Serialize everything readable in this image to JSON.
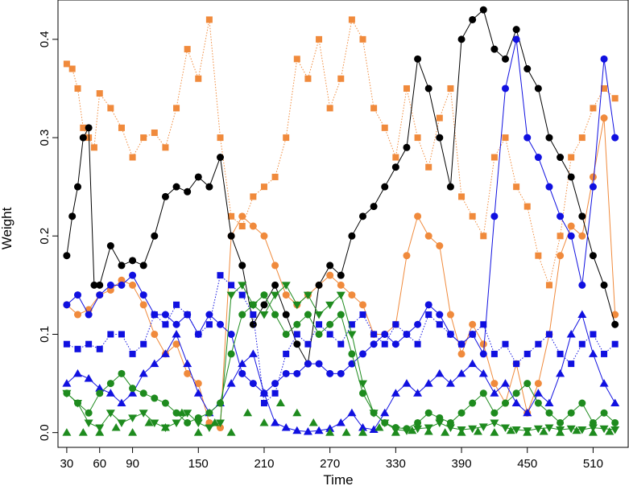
{
  "chart_data": {
    "type": "scatter",
    "xlabel": "Time",
    "ylabel": "Weight",
    "xlim": [
      22,
      542
    ],
    "ylim": [
      -0.015,
      0.44
    ],
    "xticks": [
      30,
      60,
      90,
      150,
      210,
      270,
      330,
      390,
      450,
      510
    ],
    "yticks": [
      0.0,
      0.1,
      0.2,
      0.3,
      0.4
    ],
    "ytick_labels": [
      "0.0",
      "0.1",
      "0.2",
      "0.3",
      "0.4"
    ],
    "colors": {
      "orange": "#F08A3C",
      "black": "#000000",
      "blue": "#1010E0",
      "green": "#1E8B1E"
    },
    "series": [
      {
        "color": "#F08A3C",
        "marker": "square",
        "line": "dotted",
        "x": [
          30,
          35,
          40,
          45,
          50,
          55,
          60,
          70,
          80,
          90,
          100,
          110,
          120,
          130,
          140,
          150,
          160,
          170,
          180,
          190,
          200,
          210,
          220,
          230,
          240,
          250,
          260,
          270,
          280,
          290,
          300,
          310,
          320,
          330,
          340,
          350,
          360,
          370,
          380,
          390,
          400,
          410,
          420,
          430,
          440,
          450,
          460,
          470,
          480,
          490,
          500,
          510,
          520,
          530
        ],
        "y": [
          0.375,
          0.37,
          0.35,
          0.31,
          0.3,
          0.29,
          0.345,
          0.33,
          0.31,
          0.28,
          0.3,
          0.305,
          0.29,
          0.33,
          0.39,
          0.36,
          0.42,
          0.3,
          0.22,
          0.21,
          0.24,
          0.25,
          0.26,
          0.3,
          0.38,
          0.36,
          0.4,
          0.33,
          0.36,
          0.42,
          0.4,
          0.33,
          0.31,
          0.28,
          0.35,
          0.3,
          0.27,
          0.32,
          0.35,
          0.24,
          0.22,
          0.2,
          0.28,
          0.3,
          0.25,
          0.23,
          0.18,
          0.15,
          0.2,
          0.28,
          0.3,
          0.33,
          0.35,
          0.34
        ]
      },
      {
        "color": "#F08A3C",
        "marker": "circle",
        "line": "solid",
        "x": [
          30,
          40,
          50,
          60,
          70,
          80,
          90,
          100,
          110,
          120,
          130,
          140,
          150,
          160,
          170,
          180,
          190,
          200,
          210,
          220,
          230,
          240,
          250,
          260,
          270,
          280,
          290,
          300,
          310,
          320,
          330,
          340,
          350,
          360,
          370,
          380,
          390,
          400,
          410,
          420,
          430,
          440,
          450,
          460,
          470,
          480,
          490,
          500,
          510,
          520,
          530
        ],
        "y": [
          0.13,
          0.12,
          0.125,
          0.14,
          0.145,
          0.155,
          0.15,
          0.13,
          0.1,
          0.08,
          0.09,
          0.06,
          0.05,
          0.01,
          0.005,
          0.2,
          0.22,
          0.21,
          0.2,
          0.17,
          0.14,
          0.13,
          0.14,
          0.15,
          0.16,
          0.15,
          0.14,
          0.13,
          0.1,
          0.1,
          0.11,
          0.18,
          0.22,
          0.2,
          0.19,
          0.12,
          0.08,
          0.11,
          0.09,
          0.05,
          0.03,
          0.07,
          0.02,
          0.05,
          0.1,
          0.18,
          0.21,
          0.2,
          0.26,
          0.32,
          0.12
        ]
      },
      {
        "color": "#000000",
        "marker": "circle",
        "line": "solid",
        "x": [
          30,
          35,
          40,
          45,
          50,
          55,
          60,
          70,
          80,
          90,
          100,
          110,
          120,
          130,
          140,
          150,
          160,
          170,
          180,
          190,
          200,
          210,
          220,
          230,
          240,
          250,
          260,
          270,
          280,
          290,
          300,
          310,
          320,
          330,
          340,
          350,
          360,
          370,
          380,
          390,
          400,
          410,
          420,
          430,
          440,
          450,
          460,
          470,
          480,
          490,
          500,
          510,
          520,
          530
        ],
        "y": [
          0.18,
          0.22,
          0.25,
          0.3,
          0.31,
          0.15,
          0.15,
          0.19,
          0.17,
          0.175,
          0.17,
          0.2,
          0.24,
          0.25,
          0.245,
          0.26,
          0.25,
          0.28,
          0.2,
          0.17,
          0.11,
          0.13,
          0.15,
          0.12,
          0.09,
          0.07,
          0.15,
          0.17,
          0.16,
          0.2,
          0.22,
          0.23,
          0.25,
          0.27,
          0.29,
          0.38,
          0.35,
          0.3,
          0.25,
          0.4,
          0.42,
          0.43,
          0.39,
          0.38,
          0.41,
          0.37,
          0.35,
          0.3,
          0.28,
          0.26,
          0.22,
          0.18,
          0.15,
          0.11
        ]
      },
      {
        "color": "#1010E0",
        "marker": "square",
        "line": "dotted",
        "x": [
          30,
          40,
          50,
          60,
          70,
          80,
          90,
          100,
          110,
          120,
          130,
          140,
          150,
          160,
          170,
          180,
          190,
          200,
          210,
          220,
          230,
          240,
          250,
          260,
          270,
          280,
          290,
          300,
          310,
          320,
          330,
          340,
          350,
          360,
          370,
          380,
          390,
          400,
          410,
          420,
          430,
          440,
          450,
          460,
          470,
          480,
          490,
          500,
          510,
          520,
          530
        ],
        "y": [
          0.09,
          0.085,
          0.09,
          0.085,
          0.1,
          0.1,
          0.08,
          0.09,
          0.12,
          0.11,
          0.13,
          0.12,
          0.1,
          0.11,
          0.16,
          0.15,
          0.14,
          0.12,
          0.03,
          0.04,
          0.08,
          0.1,
          0.09,
          0.11,
          0.1,
          0.09,
          0.11,
          0.12,
          0.1,
          0.09,
          0.11,
          0.1,
          0.09,
          0.12,
          0.11,
          0.1,
          0.09,
          0.1,
          0.11,
          0.08,
          0.09,
          0.07,
          0.08,
          0.09,
          0.1,
          0.08,
          0.07,
          0.09,
          0.1,
          0.08,
          0.09
        ]
      },
      {
        "color": "#1010E0",
        "marker": "circle",
        "line": "solid",
        "x": [
          30,
          40,
          50,
          60,
          70,
          80,
          90,
          100,
          110,
          120,
          130,
          140,
          150,
          160,
          170,
          180,
          190,
          200,
          210,
          220,
          230,
          240,
          250,
          260,
          270,
          280,
          290,
          300,
          310,
          320,
          330,
          340,
          350,
          360,
          370,
          380,
          390,
          400,
          410,
          420,
          430,
          440,
          450,
          460,
          470,
          480,
          490,
          500,
          510,
          520,
          530
        ],
        "y": [
          0.13,
          0.14,
          0.12,
          0.14,
          0.15,
          0.15,
          0.16,
          0.14,
          0.12,
          0.12,
          0.11,
          0.12,
          0.1,
          0.12,
          0.11,
          0.1,
          0.06,
          0.05,
          0.04,
          0.05,
          0.06,
          0.06,
          0.07,
          0.07,
          0.06,
          0.06,
          0.07,
          0.08,
          0.09,
          0.1,
          0.09,
          0.1,
          0.11,
          0.13,
          0.12,
          0.1,
          0.09,
          0.1,
          0.08,
          0.22,
          0.35,
          0.4,
          0.3,
          0.28,
          0.25,
          0.22,
          0.2,
          0.15,
          0.25,
          0.38,
          0.3
        ]
      },
      {
        "color": "#1010E0",
        "marker": "triangle",
        "line": "solid",
        "x": [
          30,
          40,
          50,
          60,
          70,
          80,
          90,
          100,
          110,
          120,
          130,
          140,
          150,
          160,
          170,
          180,
          190,
          200,
          210,
          220,
          230,
          240,
          250,
          260,
          270,
          280,
          290,
          300,
          310,
          320,
          330,
          340,
          350,
          360,
          370,
          380,
          390,
          400,
          410,
          420,
          430,
          440,
          450,
          460,
          470,
          480,
          490,
          500,
          510,
          520,
          530
        ],
        "y": [
          0.05,
          0.06,
          0.055,
          0.045,
          0.04,
          0.03,
          0.04,
          0.06,
          0.07,
          0.08,
          0.1,
          0.07,
          0.04,
          0.02,
          0.03,
          0.05,
          0.07,
          0.08,
          0.04,
          0.01,
          0.005,
          0.002,
          0.001,
          0.002,
          0.004,
          0.01,
          0.02,
          0.005,
          0.003,
          0.02,
          0.04,
          0.05,
          0.04,
          0.05,
          0.06,
          0.05,
          0.06,
          0.07,
          0.06,
          0.04,
          0.05,
          0.03,
          0.02,
          0.04,
          0.03,
          0.06,
          0.1,
          0.12,
          0.08,
          0.05,
          0.03
        ]
      },
      {
        "color": "#1E8B1E",
        "marker": "circle",
        "line": "solid",
        "x": [
          30,
          40,
          50,
          60,
          70,
          80,
          90,
          100,
          110,
          120,
          130,
          140,
          150,
          160,
          170,
          180,
          190,
          200,
          210,
          220,
          230,
          240,
          250,
          260,
          270,
          280,
          290,
          300,
          310,
          320,
          330,
          340,
          350,
          360,
          370,
          380,
          390,
          400,
          410,
          420,
          430,
          440,
          450,
          460,
          470,
          480,
          490,
          500,
          510,
          520,
          530
        ],
        "y": [
          0.04,
          0.03,
          0.02,
          0.04,
          0.05,
          0.06,
          0.045,
          0.04,
          0.035,
          0.03,
          0.02,
          0.01,
          0.015,
          0.02,
          0.03,
          0.08,
          0.12,
          0.13,
          0.14,
          0.12,
          0.1,
          0.11,
          0.12,
          0.1,
          0.11,
          0.12,
          0.08,
          0.04,
          0.02,
          0.01,
          0.005,
          0.004,
          0.01,
          0.02,
          0.015,
          0.01,
          0.02,
          0.03,
          0.04,
          0.02,
          0.03,
          0.04,
          0.05,
          0.03,
          0.02,
          0.01,
          0.02,
          0.03,
          0.01,
          0.02,
          0.01
        ]
      },
      {
        "color": "#1E8B1E",
        "marker": "triangle-down",
        "line": "solid",
        "x": [
          30,
          40,
          50,
          60,
          70,
          80,
          90,
          100,
          110,
          120,
          130,
          140,
          150,
          160,
          170,
          180,
          190,
          200,
          210,
          220,
          230,
          240,
          250,
          260,
          270,
          280,
          290,
          300,
          310,
          320,
          330,
          340,
          350,
          360,
          370,
          380,
          390,
          400,
          410,
          420,
          430,
          440,
          450,
          460,
          470,
          480,
          490,
          500,
          510,
          520,
          530
        ],
        "y": [
          0.04,
          0.03,
          0.01,
          0.005,
          0.02,
          0.01,
          0.015,
          0.02,
          0.01,
          0.005,
          0.01,
          0.02,
          0.01,
          0.005,
          0.01,
          0.14,
          0.15,
          0.13,
          0.12,
          0.14,
          0.15,
          0.13,
          0.14,
          0.12,
          0.13,
          0.14,
          0.1,
          0.05,
          0.02,
          0.01,
          0.003,
          0.002,
          0.004,
          0.005,
          0.01,
          0.005,
          0.003,
          0.004,
          0.006,
          0.01,
          0.005,
          0.003,
          0.002,
          0.004,
          0.005,
          0.003,
          0.004,
          0.003,
          0.005,
          0.004,
          0.003
        ]
      },
      {
        "color": "#1E8B1E",
        "marker": "triangle",
        "line": "none",
        "x": [
          30,
          45,
          60,
          75,
          90,
          105,
          120,
          135,
          150,
          165,
          180,
          195,
          210,
          225,
          240,
          255,
          270,
          285,
          300,
          315,
          330,
          345,
          360,
          375,
          390,
          405,
          420,
          435,
          450,
          465,
          480,
          495,
          510,
          525
        ],
        "y": [
          0.0,
          0.0,
          0.0,
          0.005,
          0.0,
          0.01,
          0.005,
          0.02,
          0.0,
          0.01,
          0.0,
          0.02,
          0.01,
          0.03,
          0.02,
          0.01,
          0.0,
          0.0,
          0.0,
          0.005,
          0.0,
          0.002,
          0.001,
          0.0,
          0.0,
          0.001,
          0.0,
          0.002,
          0.0,
          0.001,
          0.0,
          0.002,
          0.0,
          0.001
        ]
      }
    ]
  }
}
